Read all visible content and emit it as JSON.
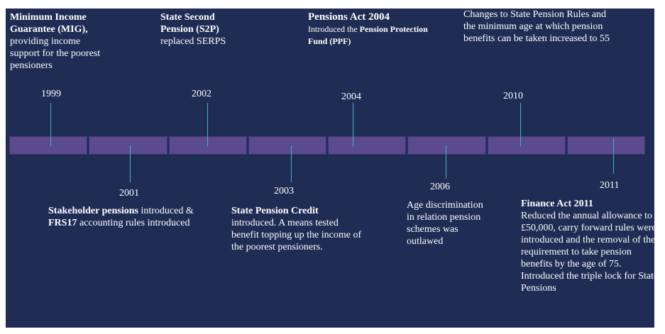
{
  "timeline": {
    "segment_count": 8,
    "events": [
      {
        "year": "1999",
        "title": "Minimum Income Guarantee (MIG),",
        "text": "providing income support for the poorest pensioners"
      },
      {
        "year": "2001",
        "title": "Stakeholder pensions",
        "text_a": " introduced &",
        "title2": "FRS17",
        "text_b": " accounting rules introduced"
      },
      {
        "year": "2002",
        "title": "State Second Pension (S2P)",
        "text": "replaced SERPS"
      },
      {
        "year": "2003",
        "title": "State Pension Credit",
        "text": "introduced. A means tested benefit topping up the income of the poorest pensioners."
      },
      {
        "year": "2004",
        "title": "Pensions Act 2004",
        "text_a": "Introduced the ",
        "title2": "Pension Protection Fund (PPF)"
      },
      {
        "year": "2006",
        "text": "Age discrimination in relation pension schemes was outlawed"
      },
      {
        "year": "2010",
        "text": "Changes to State Pension Rules and the minimum age at which pension benefits can be taken increased to 55"
      },
      {
        "year": "2011",
        "title": "Finance Act 2011",
        "text": "Reduced the annual allowance to £50,000, carry forward rules were introduced and the removal of the requirement  to take pension benefits by the age of 75. Introduced the triple lock for State Pensions"
      }
    ]
  }
}
